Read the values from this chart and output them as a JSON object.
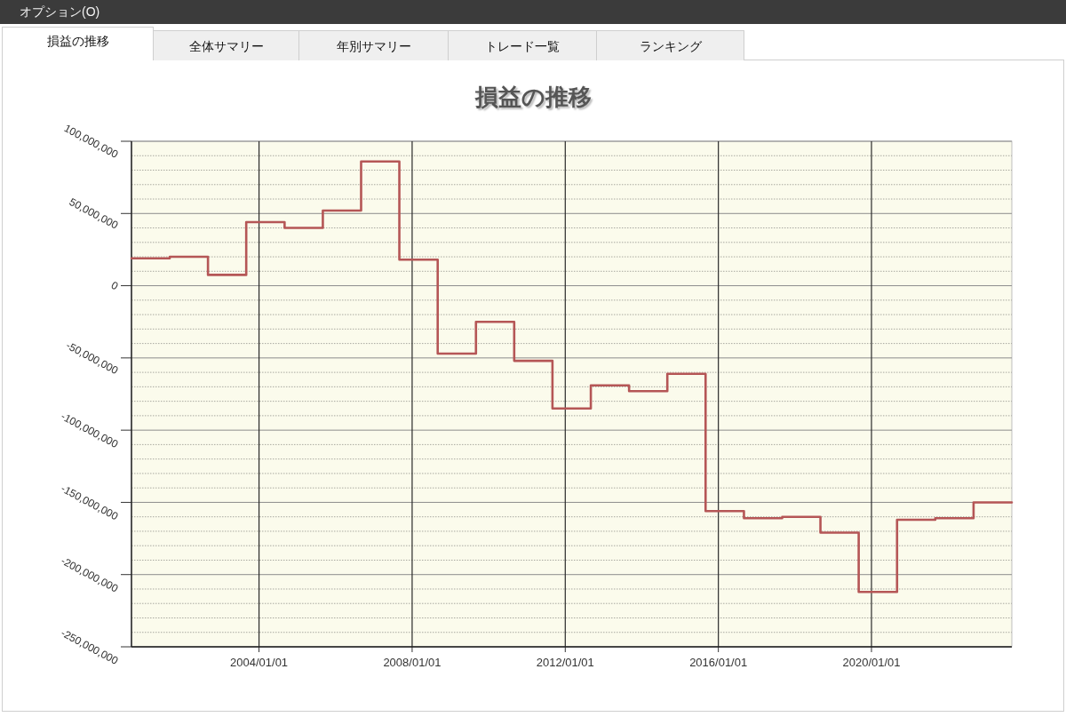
{
  "chart_data": {
    "type": "step",
    "title": "損益の推移",
    "annotations": [
      "オプション(O)",
      "損益の推移",
      "全体サマリー",
      "年別サマリー",
      "トレード一覧",
      "ランキング"
    ],
    "x": [
      "2000-09-01",
      "2001-09-01",
      "2002-09-01",
      "2003-09-01",
      "2004-09-01",
      "2005-09-01",
      "2006-09-01",
      "2007-09-01",
      "2008-09-01",
      "2009-09-01",
      "2010-09-01",
      "2011-09-01",
      "2012-09-01",
      "2013-09-01",
      "2014-09-01",
      "2015-09-01",
      "2016-09-01",
      "2017-09-01",
      "2018-09-01",
      "2019-09-01",
      "2020-09-01",
      "2021-09-01",
      "2022-09-01",
      "2023-09-01"
    ],
    "values": [
      19000000,
      20000000,
      7500000,
      44000000,
      40000000,
      52000000,
      86000000,
      18000000,
      -47000000,
      -25000000,
      -52000000,
      -85000000,
      -69000000,
      -73000000,
      -61000000,
      -156000000,
      -161000000,
      -160000000,
      -171000000,
      -212000000,
      -162000000,
      -161000000,
      -150000000,
      -150000000
    ],
    "color": "#b55656",
    "line_style": "solid",
    "xlim": [
      "2000-09-01",
      "2023-09-01"
    ],
    "xticks": [
      {
        "value": "2004-01-01",
        "label": "2004/01/01"
      },
      {
        "value": "2008-01-01",
        "label": "2008/01/01"
      },
      {
        "value": "2012-01-01",
        "label": "2012/01/01"
      },
      {
        "value": "2016-01-01",
        "label": "2016/01/01"
      },
      {
        "value": "2020-01-01",
        "label": "2020/01/01"
      }
    ],
    "ylim": [
      -250000000,
      100000000
    ],
    "yticks": [
      {
        "value": -250000000,
        "label": "-250,000,000"
      },
      {
        "value": -240000000,
        "label": null
      },
      {
        "value": -230000000,
        "label": null
      },
      {
        "value": -220000000,
        "label": null
      },
      {
        "value": -210000000,
        "label": null
      },
      {
        "value": -200000000,
        "label": "-200,000,000"
      },
      {
        "value": -190000000,
        "label": null
      },
      {
        "value": -180000000,
        "label": null
      },
      {
        "value": -170000000,
        "label": null
      },
      {
        "value": -160000000,
        "label": null
      },
      {
        "value": -150000000,
        "label": "-150,000,000"
      },
      {
        "value": -140000000,
        "label": null
      },
      {
        "value": -130000000,
        "label": null
      },
      {
        "value": -120000000,
        "label": null
      },
      {
        "value": -110000000,
        "label": null
      },
      {
        "value": -100000000,
        "label": "-100,000,000"
      },
      {
        "value": -90000000,
        "label": null
      },
      {
        "value": -80000000,
        "label": null
      },
      {
        "value": -70000000,
        "label": null
      },
      {
        "value": -60000000,
        "label": null
      },
      {
        "value": -50000000,
        "label": "-50,000,000"
      },
      {
        "value": -40000000,
        "label": null
      },
      {
        "value": -30000000,
        "label": null
      },
      {
        "value": -20000000,
        "label": null
      },
      {
        "value": -10000000,
        "label": null
      },
      {
        "value": 0,
        "label": "0"
      },
      {
        "value": 10000000,
        "label": null
      },
      {
        "value": 20000000,
        "label": null
      },
      {
        "value": 30000000,
        "label": null
      },
      {
        "value": 40000000,
        "label": null
      },
      {
        "value": 50000000,
        "label": "50,000,000"
      },
      {
        "value": 60000000,
        "label": null
      },
      {
        "value": 70000000,
        "label": null
      },
      {
        "value": 80000000,
        "label": null
      },
      {
        "value": 90000000,
        "label": null
      },
      {
        "value": 100000000,
        "label": "100,000,000"
      }
    ],
    "grid": true
  }
}
